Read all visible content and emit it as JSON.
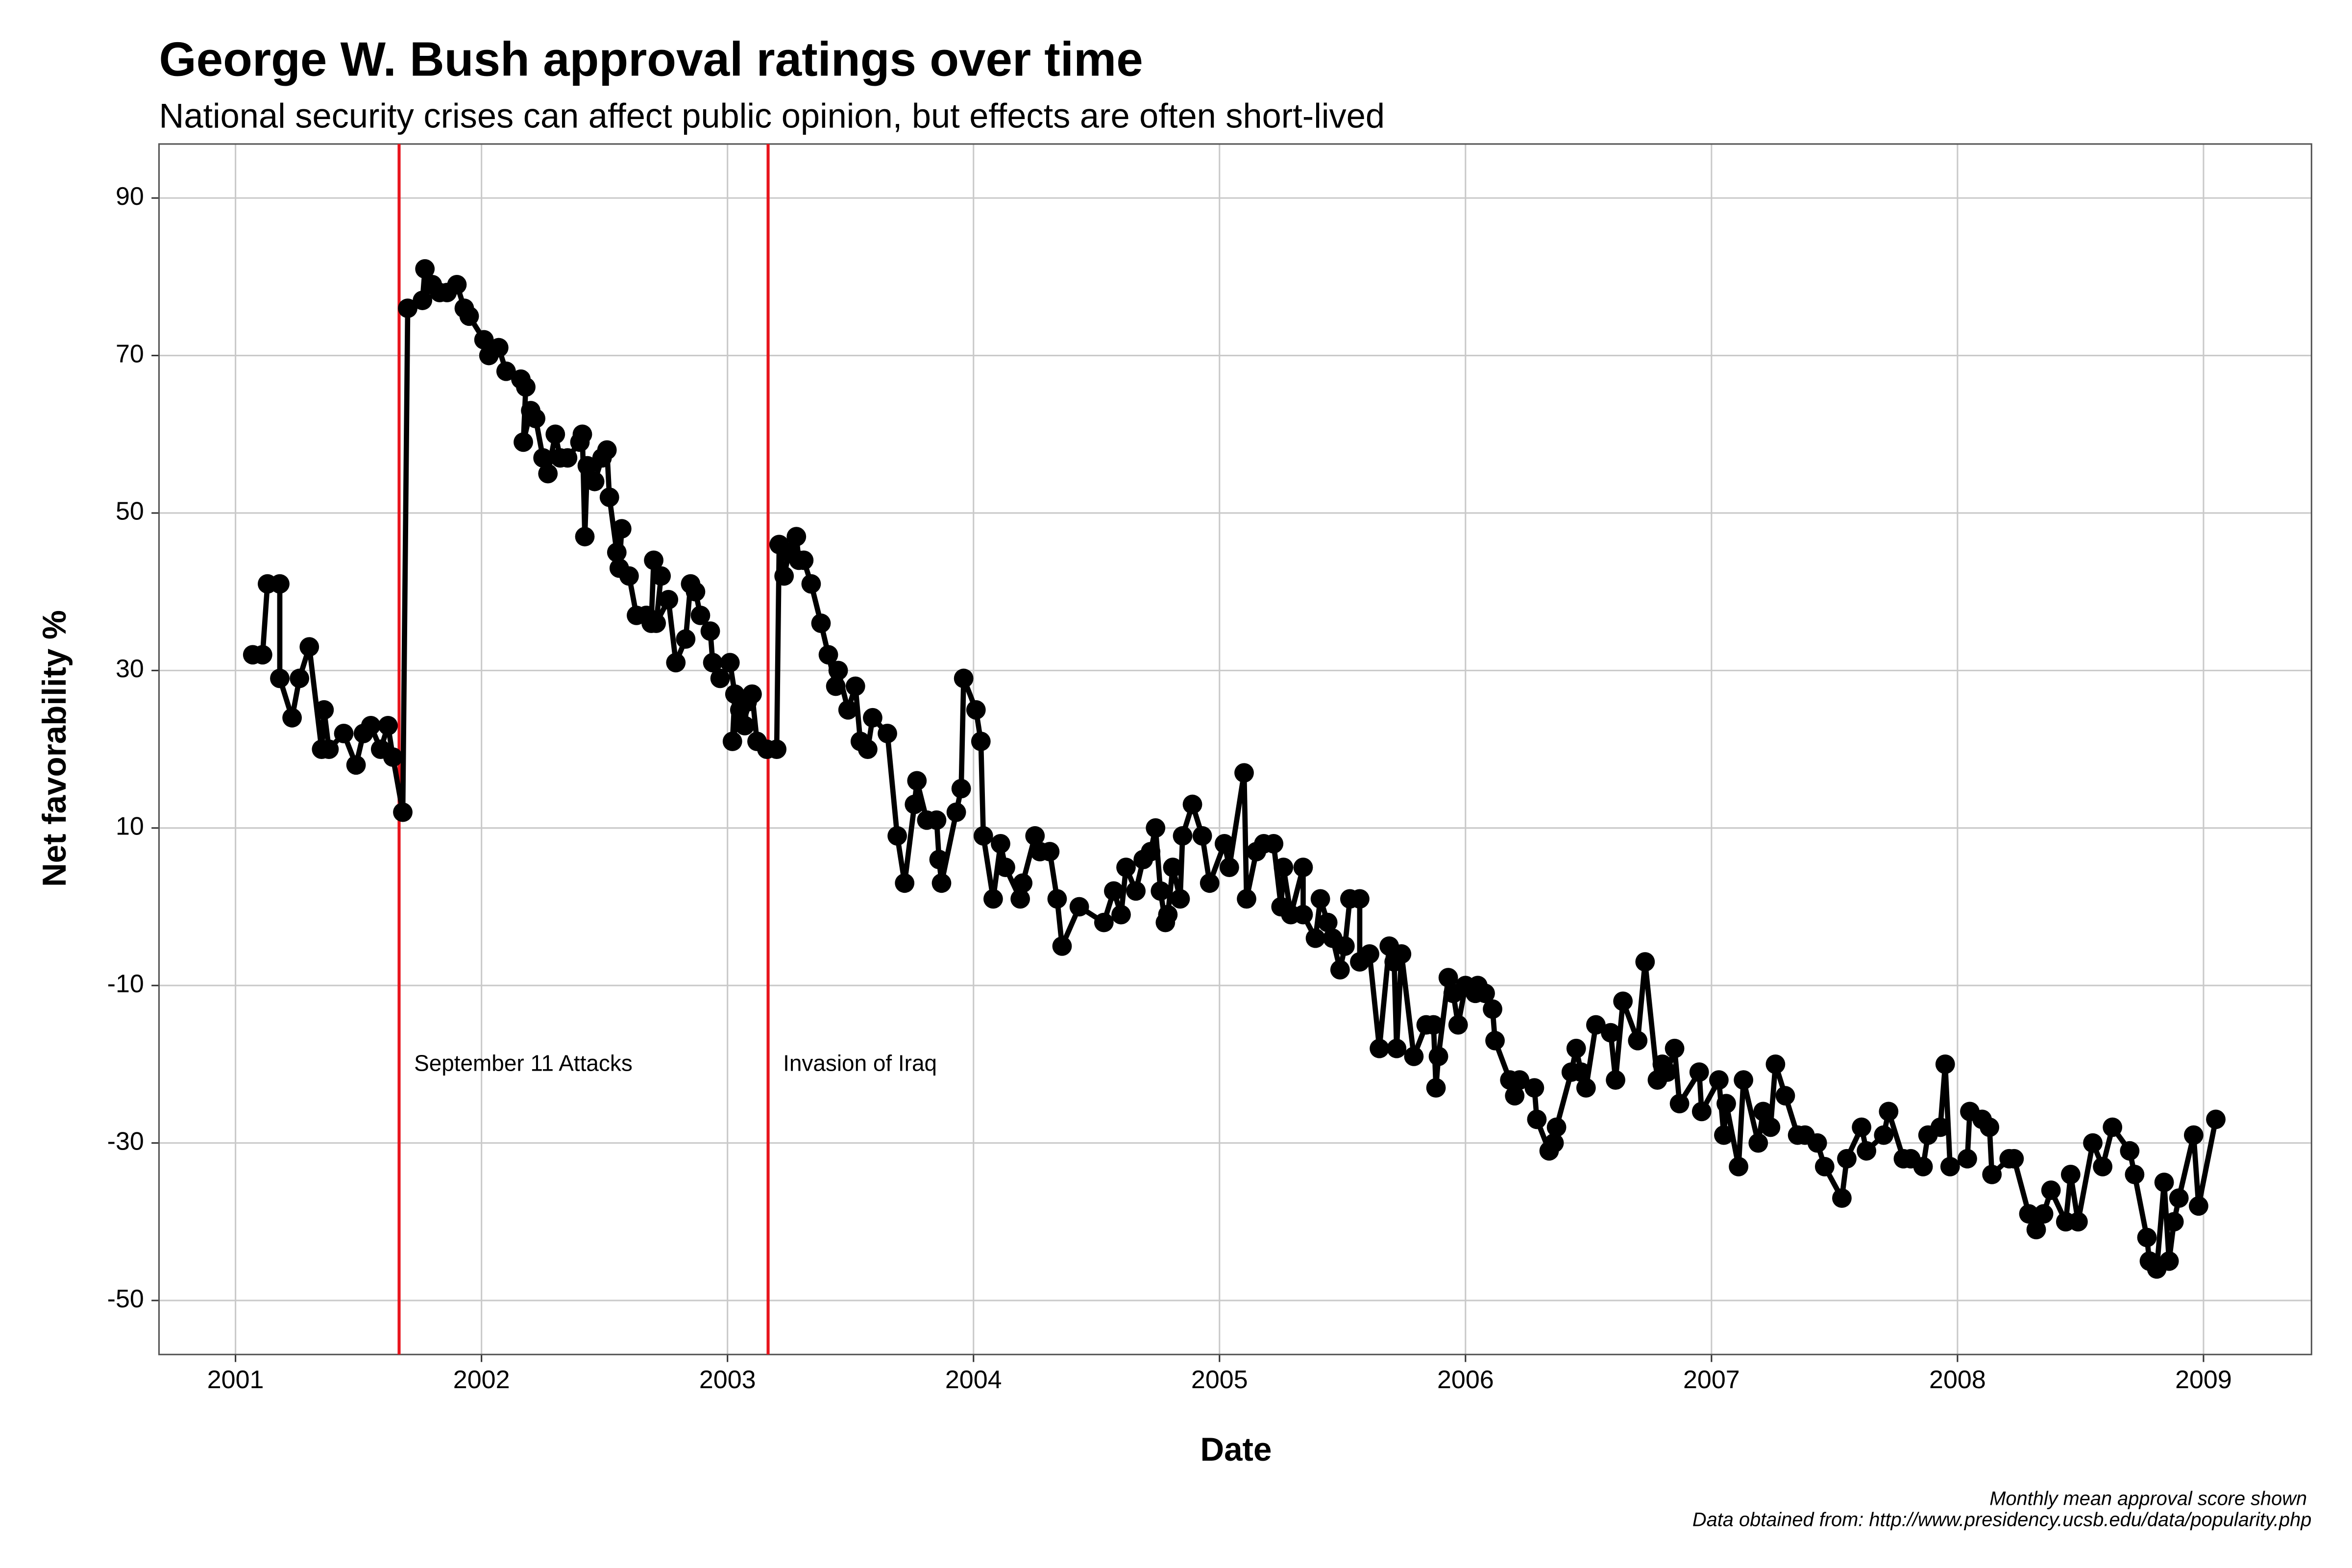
{
  "chart_data": {
    "type": "line",
    "title": "George W. Bush approval ratings over time",
    "subtitle": "National security crises can affect public opinion, but effects are often short-lived",
    "x_label": "Date",
    "y_label": "Net favorability %",
    "caption": [
      "Monthly mean approval score shown",
      "Data obtained from: http://www.presidency.ucsb.edu/data/popularity.php"
    ],
    "color": "#000000",
    "grid": true,
    "xlim": [
      2000.689,
      2009.439
    ],
    "ylim": [
      -56.86,
      96.86
    ],
    "xticks": [
      2001,
      2002,
      2003,
      2004,
      2005,
      2006,
      2007,
      2008,
      2009
    ],
    "yticks": [
      -50,
      -30,
      -10,
      10,
      30,
      50,
      70,
      90
    ],
    "events": [
      {
        "x": 2001.665,
        "label": "September 11 Attacks"
      },
      {
        "x": 2003.165,
        "label": "Invasion of Iraq"
      }
    ],
    "event_color": "#e8141c",
    "x": [
      2001.07,
      2001.11,
      2001.13,
      2001.18,
      2001.18,
      2001.23,
      2001.26,
      2001.3,
      2001.35,
      2001.36,
      2001.38,
      2001.44,
      2001.49,
      2001.52,
      2001.55,
      2001.59,
      2001.62,
      2001.64,
      2001.68,
      2001.7,
      2001.76,
      2001.77,
      2001.8,
      2001.83,
      2001.86,
      2001.9,
      2001.93,
      2001.95,
      2002.01,
      2002.03,
      2002.07,
      2002.1,
      2002.16,
      2002.18,
      2002.17,
      2002.2,
      2002.22,
      2002.25,
      2002.27,
      2002.3,
      2002.32,
      2002.35,
      2002.4,
      2002.41,
      2002.42,
      2002.43,
      2002.46,
      2002.49,
      2002.51,
      2002.52,
      2002.55,
      2002.57,
      2002.56,
      2002.6,
      2002.63,
      2002.67,
      2002.69,
      2002.7,
      2002.73,
      2002.71,
      2002.76,
      2002.79,
      2002.83,
      2002.85,
      2002.87,
      2002.89,
      2002.93,
      2002.94,
      2002.97,
      2003.01,
      2003.03,
      2003.02,
      2003.05,
      2003.07,
      2003.08,
      2003.1,
      2003.12,
      2003.16,
      2003.2,
      2003.21,
      2003.23,
      2003.25,
      2003.28,
      2003.29,
      2003.31,
      2003.34,
      2003.38,
      2003.41,
      2003.44,
      2003.45,
      2003.49,
      2003.52,
      2003.54,
      2003.57,
      2003.59,
      2003.65,
      2003.69,
      2003.72,
      2003.76,
      2003.77,
      2003.81,
      2003.85,
      2003.86,
      2003.87,
      2003.93,
      2003.95,
      2003.96,
      2004.01,
      2004.03,
      2004.04,
      2004.08,
      2004.11,
      2004.13,
      2004.19,
      2004.2,
      2004.25,
      2004.27,
      2004.31,
      2004.34,
      2004.36,
      2004.43,
      2004.53,
      2004.57,
      2004.6,
      2004.62,
      2004.66,
      2004.69,
      2004.72,
      2004.74,
      2004.76,
      2004.78,
      2004.79,
      2004.81,
      2004.84,
      2004.85,
      2004.89,
      2004.93,
      2004.96,
      2005.02,
      2005.04,
      2005.1,
      2005.11,
      2005.15,
      2005.18,
      2005.22,
      2005.25,
      2005.26,
      2005.29,
      2005.34,
      2005.34,
      2005.39,
      2005.41,
      2005.44,
      2005.46,
      2005.49,
      2005.51,
      2005.53,
      2005.57,
      2005.57,
      2005.61,
      2005.65,
      2005.69,
      2005.71,
      2005.72,
      2005.74,
      2005.79,
      2005.84,
      2005.87,
      2005.88,
      2005.89,
      2005.93,
      2005.95,
      2005.97,
      2006.0,
      2006.04,
      2006.05,
      2006.08,
      2006.11,
      2006.12,
      2006.18,
      2006.2,
      2006.22,
      2006.28,
      2006.29,
      2006.34,
      2006.36,
      2006.37,
      2006.43,
      2006.45,
      2006.47,
      2006.49,
      2006.53,
      2006.59,
      2006.61,
      2006.64,
      2006.7,
      2006.73,
      2006.78,
      2006.8,
      2006.82,
      2006.85,
      2006.87,
      2006.95,
      2006.96,
      2007.03,
      2007.05,
      2007.06,
      2007.11,
      2007.13,
      2007.19,
      2007.21,
      2007.24,
      2007.26,
      2007.3,
      2007.35,
      2007.38,
      2007.43,
      2007.46,
      2007.53,
      2007.55,
      2007.61,
      2007.63,
      2007.7,
      2007.72,
      2007.78,
      2007.81,
      2007.86,
      2007.88,
      2007.93,
      2007.95,
      2007.97,
      2008.04,
      2008.05,
      2008.1,
      2008.13,
      2008.14,
      2008.21,
      2008.23,
      2008.29,
      2008.32,
      2008.35,
      2008.38,
      2008.44,
      2008.46,
      2008.49,
      2008.55,
      2008.59,
      2008.63,
      2008.7,
      2008.72,
      2008.77,
      2008.78,
      2008.81,
      2008.84,
      2008.86,
      2008.88,
      2008.9,
      2008.96,
      2008.98,
      2009.05
    ],
    "values": [
      32,
      32,
      41,
      41,
      29,
      24,
      29,
      33,
      20,
      25,
      20,
      22,
      18,
      22,
      23,
      20,
      23,
      19,
      12,
      76,
      77,
      81,
      79,
      78,
      78,
      79,
      76,
      75,
      72,
      70,
      71,
      68,
      67,
      66,
      59,
      63,
      62,
      57,
      55,
      60,
      57,
      57,
      59,
      60,
      47,
      56,
      54,
      57,
      58,
      52,
      45,
      48,
      43,
      42,
      37,
      37,
      36,
      44,
      42,
      36,
      39,
      31,
      34,
      41,
      40,
      37,
      35,
      31,
      29,
      31,
      27,
      21,
      25,
      23,
      26,
      27,
      21,
      20,
      20,
      46,
      42,
      45,
      47,
      44,
      44,
      41,
      36,
      32,
      28,
      30,
      25,
      28,
      21,
      20,
      24,
      22,
      9,
      3,
      13,
      16,
      11,
      11,
      6,
      3,
      12,
      15,
      29,
      25,
      21,
      9,
      1,
      8,
      5,
      1,
      3,
      9,
      7,
      7,
      1,
      -5,
      0,
      -2,
      2,
      -1,
      5,
      2,
      6,
      7,
      10,
      2,
      -2,
      -1,
      5,
      1,
      9,
      13,
      9,
      3,
      8,
      5,
      17,
      1,
      7,
      8,
      8,
      0,
      5,
      -1,
      5,
      -1,
      -4,
      1,
      -2,
      -4,
      -8,
      -5,
      1,
      1,
      -7,
      -6,
      -18,
      -5,
      -7,
      -18,
      -6,
      -19,
      -15,
      -15,
      -23,
      -19,
      -9,
      -11,
      -15,
      -10,
      -11,
      -10,
      -11,
      -13,
      -17,
      -22,
      -24,
      -22,
      -23,
      -27,
      -31,
      -30,
      -28,
      -21,
      -18,
      -21,
      -23,
      -15,
      -16,
      -22,
      -12,
      -17,
      -7,
      -22,
      -20,
      -21,
      -18,
      -25,
      -21,
      -26,
      -22,
      -29,
      -25,
      -33,
      -22,
      -30,
      -26,
      -28,
      -20,
      -24,
      -29,
      -29,
      -30,
      -33,
      -37,
      -32,
      -28,
      -31,
      -29,
      -26,
      -32,
      -32,
      -33,
      -29,
      -28,
      -20,
      -33,
      -32,
      -26,
      -27,
      -28,
      -34,
      -32,
      -32,
      -39,
      -41,
      -39,
      -36,
      -40,
      -34,
      -40,
      -30,
      -33,
      -28,
      -31,
      -34,
      -42,
      -45,
      -46,
      -35,
      -45,
      -40,
      -37,
      -29,
      -38,
      -27
    ]
  }
}
